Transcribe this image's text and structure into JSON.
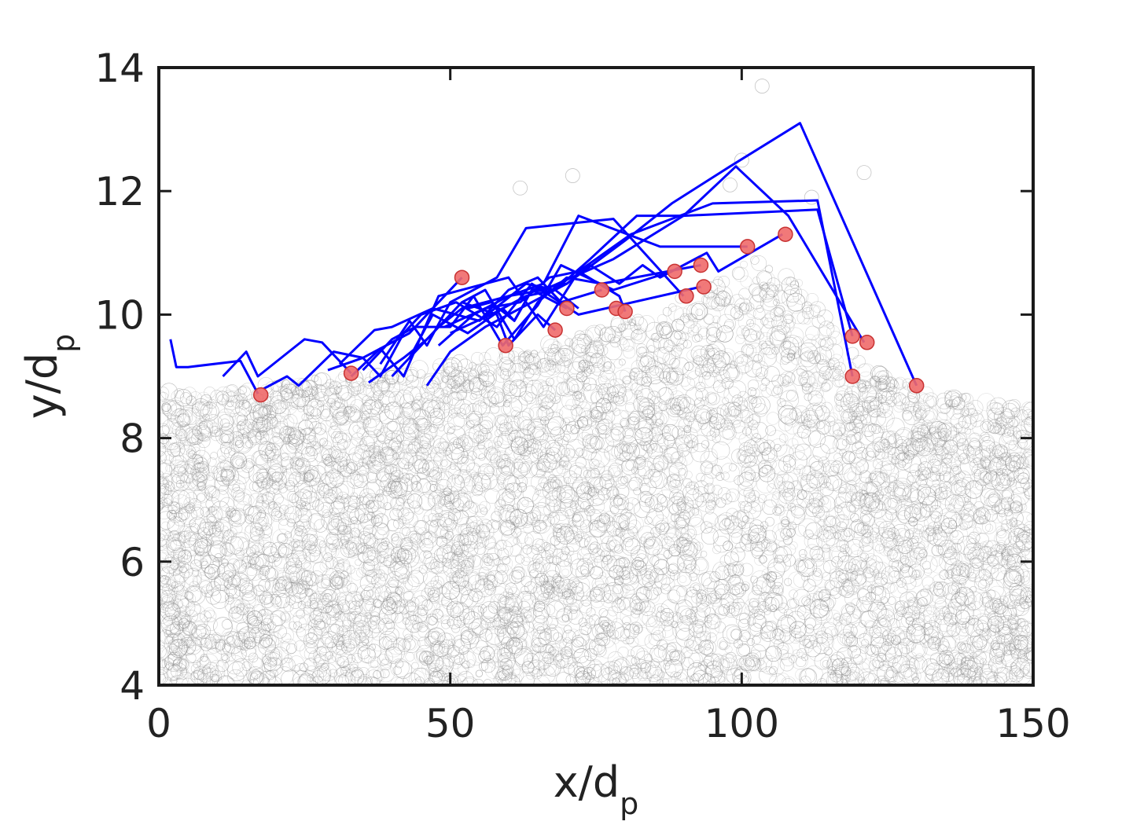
{
  "chart_data": {
    "type": "scatter",
    "title": "",
    "xlabel": {
      "base": "x/d",
      "sub": "p"
    },
    "ylabel": {
      "base": "y/d",
      "sub": "p"
    },
    "xlim": [
      0,
      150
    ],
    "ylim": [
      4,
      14
    ],
    "xticks": [
      "0",
      "50",
      "100",
      "150"
    ],
    "yticks": [
      "4",
      "6",
      "8",
      "10",
      "12",
      "14"
    ],
    "grid": false,
    "legend": "none",
    "colors": {
      "trajectory": "#0000ff",
      "endpoint_fill": "#f06a6a",
      "endpoint_edge": "#c83232",
      "bed_particle_edge": "#8c8c8c",
      "frame": "#1a1a1a"
    },
    "bed_surface": {
      "x": [
        0,
        10,
        20,
        30,
        40,
        50,
        60,
        70,
        80,
        90,
        100,
        104,
        110,
        115,
        120,
        125,
        130,
        135,
        140,
        145,
        150
      ],
      "y": [
        8.8,
        8.8,
        8.9,
        9.0,
        9.05,
        9.2,
        9.4,
        9.6,
        9.9,
        10.3,
        10.8,
        10.95,
        10.5,
        9.9,
        9.3,
        9.0,
        8.85,
        8.75,
        8.65,
        8.55,
        8.5
      ]
    },
    "bed_outliers": [
      {
        "x": 103.5,
        "y": 13.7
      },
      {
        "x": 71,
        "y": 12.25
      },
      {
        "x": 62,
        "y": 12.05
      },
      {
        "x": 100,
        "y": 12.5
      },
      {
        "x": 121,
        "y": 12.3
      },
      {
        "x": 98,
        "y": 12.1
      },
      {
        "x": 112,
        "y": 11.9
      }
    ],
    "trajectories": [
      {
        "x": [
          2,
          3,
          5,
          14,
          17
        ],
        "y": [
          9.6,
          9.15,
          9.15,
          9.25,
          8.72
        ]
      },
      {
        "x": [
          11,
          15,
          17,
          25,
          28,
          33
        ],
        "y": [
          9.0,
          9.4,
          9.0,
          9.6,
          9.55,
          9.05
        ]
      },
      {
        "x": [
          18,
          22,
          24,
          30,
          35,
          43,
          52
        ],
        "y": [
          8.8,
          9.0,
          8.85,
          9.4,
          9.3,
          9.7,
          10.6
        ]
      },
      {
        "x": [
          29,
          35,
          38,
          42,
          45,
          51,
          58,
          64,
          72,
          93
        ],
        "y": [
          9.1,
          9.3,
          9.0,
          9.7,
          10.0,
          10.2,
          9.8,
          10.5,
          10.0,
          10.45
        ]
      },
      {
        "x": [
          31,
          37,
          40,
          47,
          55,
          63,
          68,
          72
        ],
        "y": [
          9.2,
          9.75,
          9.8,
          10.1,
          9.9,
          10.5,
          10.4,
          10.1
        ]
      },
      {
        "x": [
          33,
          38,
          42,
          48,
          60,
          66,
          72,
          79,
          80
        ],
        "y": [
          9.0,
          9.45,
          9.0,
          10.3,
          10.6,
          9.8,
          10.7,
          10.3,
          10.05
        ]
      },
      {
        "x": [
          35,
          40,
          44,
          50,
          54,
          59,
          65,
          69,
          78,
          88
        ],
        "y": [
          9.1,
          9.6,
          9.8,
          9.8,
          10.3,
          9.5,
          10.15,
          10.8,
          10.4,
          10.7
        ]
      },
      {
        "x": [
          36,
          42,
          46,
          52,
          56,
          61,
          65,
          70,
          76,
          93
        ],
        "y": [
          8.9,
          9.3,
          9.6,
          10.2,
          10.4,
          9.6,
          10.2,
          10.6,
          10.5,
          10.8
        ]
      },
      {
        "x": [
          38,
          43,
          46,
          50,
          58,
          63,
          73,
          78,
          90
        ],
        "y": [
          9.2,
          9.9,
          9.5,
          10.2,
          10.6,
          11.4,
          11.5,
          11.55,
          10.3
        ]
      },
      {
        "x": [
          40,
          45,
          48,
          52,
          60,
          66,
          72,
          86,
          101
        ],
        "y": [
          9.0,
          9.5,
          9.8,
          10.1,
          10.3,
          10.5,
          11.6,
          11.1,
          11.1
        ]
      },
      {
        "x": [
          43,
          47,
          53,
          59,
          61,
          64,
          70,
          74,
          79,
          83,
          86,
          94,
          96,
          107
        ],
        "y": [
          9.3,
          10.0,
          9.7,
          10.1,
          9.9,
          10.4,
          10.5,
          10.8,
          10.5,
          10.8,
          10.6,
          11.0,
          10.7,
          11.3
        ]
      },
      {
        "x": [
          46,
          50,
          56,
          62,
          70,
          80,
          88,
          98,
          110,
          130
        ],
        "y": [
          8.85,
          9.4,
          9.8,
          10.1,
          10.5,
          11.2,
          11.8,
          12.4,
          13.1,
          8.85
        ]
      },
      {
        "x": [
          48,
          54,
          60,
          66,
          78,
          90,
          99,
          108,
          121
        ],
        "y": [
          9.5,
          10.0,
          10.3,
          10.4,
          10.9,
          11.6,
          12.4,
          11.6,
          9.55
        ]
      },
      {
        "x": [
          49,
          56,
          62,
          67,
          72,
          81,
          95,
          113,
          119
        ],
        "y": [
          9.8,
          10.1,
          10.2,
          10.6,
          10.7,
          11.3,
          11.8,
          11.85,
          9.0
        ]
      },
      {
        "x": [
          50,
          57,
          63,
          68,
          74,
          82,
          90,
          113,
          119
        ],
        "y": [
          9.7,
          10.0,
          10.3,
          10.4,
          10.9,
          11.6,
          11.6,
          11.7,
          9.65
        ]
      },
      {
        "x": [
          52,
          58,
          60,
          65,
          68
        ],
        "y": [
          10.2,
          10.0,
          9.5,
          10.0,
          9.75
        ]
      },
      {
        "x": [
          53,
          57,
          61,
          64,
          70
        ],
        "y": [
          10.1,
          10.2,
          9.9,
          10.4,
          10.1
        ]
      },
      {
        "x": [
          55,
          60,
          65,
          69,
          76
        ],
        "y": [
          9.9,
          10.4,
          10.6,
          10.2,
          10.4
        ]
      }
    ],
    "endpoints": [
      {
        "x": 17.5,
        "y": 8.7
      },
      {
        "x": 33,
        "y": 9.05
      },
      {
        "x": 52,
        "y": 10.6
      },
      {
        "x": 59.5,
        "y": 9.5
      },
      {
        "x": 68,
        "y": 9.75
      },
      {
        "x": 70,
        "y": 10.1
      },
      {
        "x": 76,
        "y": 10.4
      },
      {
        "x": 78.5,
        "y": 10.1
      },
      {
        "x": 80,
        "y": 10.05
      },
      {
        "x": 88.5,
        "y": 10.7
      },
      {
        "x": 90.5,
        "y": 10.3
      },
      {
        "x": 93,
        "y": 10.8
      },
      {
        "x": 93.5,
        "y": 10.45
      },
      {
        "x": 101,
        "y": 11.1
      },
      {
        "x": 107.5,
        "y": 11.3
      },
      {
        "x": 119,
        "y": 9.0
      },
      {
        "x": 119,
        "y": 9.65
      },
      {
        "x": 121.5,
        "y": 9.55
      },
      {
        "x": 130,
        "y": 8.85
      }
    ]
  }
}
